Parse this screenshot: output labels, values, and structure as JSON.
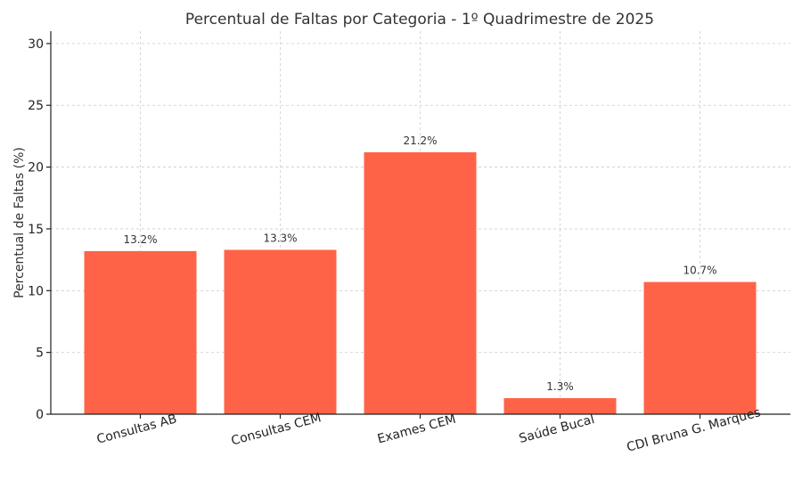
{
  "chart_data": {
    "type": "bar",
    "title": "Percentual de Faltas por Categoria - 1º Quadrimestre de 2025",
    "xlabel": "",
    "ylabel": "Percentual de Faltas (%)",
    "ylim": [
      0,
      31
    ],
    "yticks": [
      "0",
      "5",
      "10",
      "15",
      "20",
      "25",
      "30"
    ],
    "categories": [
      "Consultas AB",
      "Consultas CEM",
      "Exames CEM",
      "Saúde Bucal",
      "CDI Bruna G. Marques"
    ],
    "values": [
      13.2,
      13.3,
      21.2,
      1.3,
      10.7
    ],
    "data_labels": [
      "13.2%",
      "13.3%",
      "21.2%",
      "1.3%",
      "10.7%"
    ],
    "bar_color": "#ff6347",
    "grid": true
  }
}
